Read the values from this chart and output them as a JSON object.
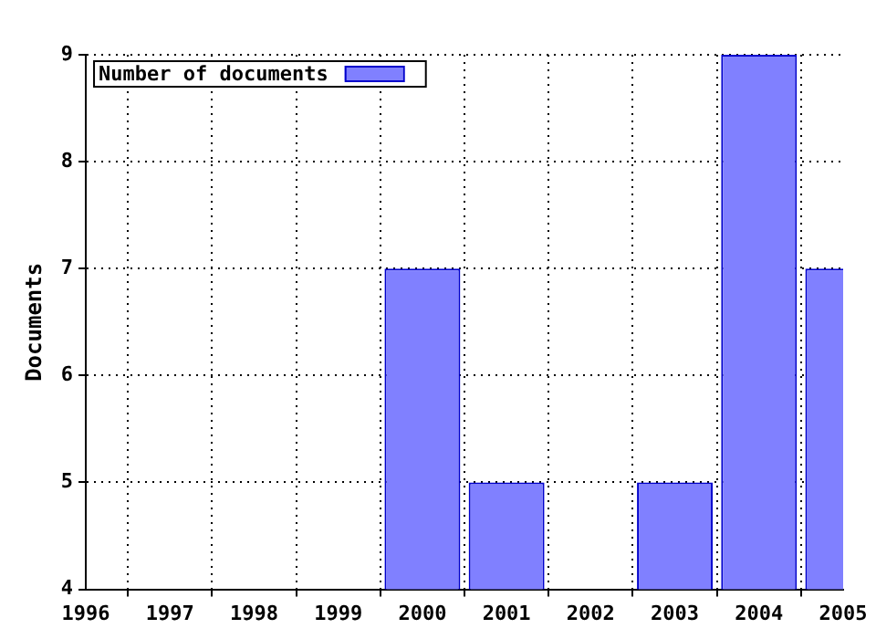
{
  "chart_data": {
    "type": "bar",
    "ylabel": "Documents",
    "x": [
      2000,
      2001,
      2003,
      2004,
      2005
    ],
    "series": [
      {
        "name": "Number of documents",
        "color": "#8080ff",
        "values": [
          7,
          5,
          5,
          9,
          7
        ]
      }
    ],
    "xlim": [
      1996,
      2005
    ],
    "xticks": [
      1996,
      1997,
      1998,
      1999,
      2000,
      2001,
      2002,
      2003,
      2004,
      2005
    ],
    "ylim": [
      4,
      9
    ],
    "yticks": [
      4,
      5,
      6,
      7,
      8,
      9
    ],
    "grid": true,
    "legend": "top left"
  }
}
